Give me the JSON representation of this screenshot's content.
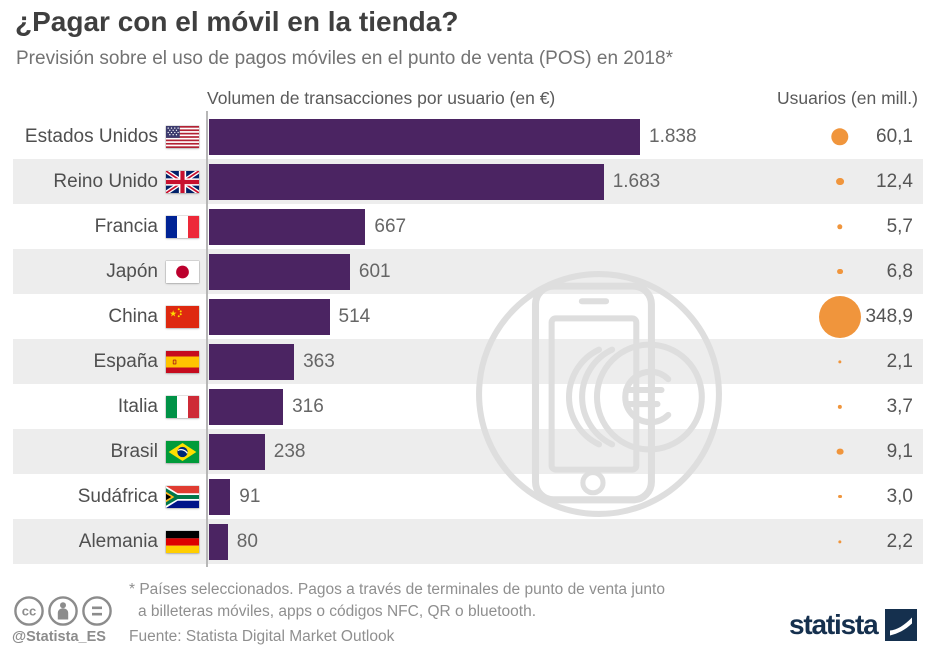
{
  "header": {
    "title": "¿Pagar con el móvil en la tienda?",
    "subtitle": "Previsión sobre el uso de pagos móviles en el punto de venta (POS) en 2018*",
    "column_volume": "Volumen de transacciones por usuario (en €)",
    "column_users": "Usuarios (en mill.)"
  },
  "chart_data": {
    "type": "bar",
    "orientation": "horizontal",
    "title": "¿Pagar con el móvil en la tienda?",
    "categories": [
      "Estados Unidos",
      "Reino Unido",
      "Francia",
      "Japón",
      "China",
      "España",
      "Italia",
      "Brasil",
      "Sudáfrica",
      "Alemania"
    ],
    "flags": [
      "us",
      "gb",
      "fr",
      "jp",
      "cn",
      "es",
      "it",
      "br",
      "za",
      "de"
    ],
    "series": [
      {
        "name": "Volumen de transacciones por usuario (en €)",
        "type": "bar",
        "color": "#4b2462",
        "values": [
          1838,
          1683,
          667,
          601,
          514,
          363,
          316,
          238,
          91,
          80
        ],
        "labels": [
          "1.838",
          "1.683",
          "667",
          "601",
          "514",
          "363",
          "316",
          "238",
          "91",
          "80"
        ]
      },
      {
        "name": "Usuarios (en mill.)",
        "type": "bubble",
        "color": "#f0953c",
        "values": [
          60.1,
          12.4,
          5.7,
          6.8,
          348.9,
          2.1,
          3.7,
          9.1,
          3.0,
          2.2
        ],
        "labels": [
          "60,1",
          "12,4",
          "5,7",
          "6,8",
          "348,9",
          "2,1",
          "3,7",
          "9,1",
          "3,0",
          "2,2"
        ]
      }
    ],
    "xlim": [
      0,
      1838
    ],
    "grid": false,
    "row_stripe_color": "#ededed"
  },
  "footer": {
    "note_line1": "* Países seleccionados. Pagos a través de terminales de punto de venta junto",
    "note_line2": "a billeteras móviles, apps o códigos NFC, QR o bluetooth.",
    "source": "Fuente: Statista Digital Market Outlook",
    "social_handle": "@Statista_ES",
    "brand": "statista"
  }
}
